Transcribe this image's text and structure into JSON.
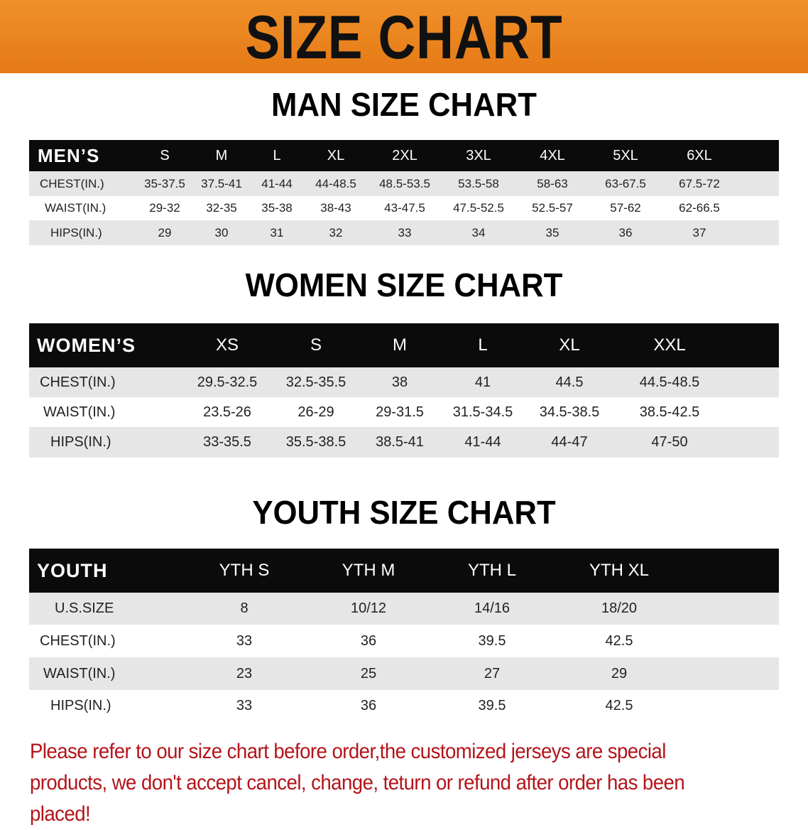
{
  "banner_title": "SIZE CHART",
  "men": {
    "title": "MAN SIZE CHART",
    "header": "MEN’S",
    "sizes": [
      "S",
      "M",
      "L",
      "XL",
      "2XL",
      "3XL",
      "4XL",
      "5XL",
      "6XL"
    ],
    "rows": [
      {
        "label": "CHEST(IN.)",
        "values": [
          "35-37.5",
          "37.5-41",
          "41-44",
          "44-48.5",
          "48.5-53.5",
          "53.5-58",
          "58-63",
          "63-67.5",
          "67.5-72"
        ]
      },
      {
        "label": "WAIST(IN.)",
        "values": [
          "29-32",
          "32-35",
          "35-38",
          "38-43",
          "43-47.5",
          "47.5-52.5",
          "52.5-57",
          "57-62",
          "62-66.5"
        ]
      },
      {
        "label": "HIPS(IN.)",
        "values": [
          "29",
          "30",
          "31",
          "32",
          "33",
          "34",
          "35",
          "36",
          "37"
        ]
      }
    ]
  },
  "women": {
    "title": "WOMEN SIZE CHART",
    "header": "WOMEN’S",
    "sizes": [
      "XS",
      "S",
      "M",
      "L",
      "XL",
      "XXL"
    ],
    "rows": [
      {
        "label": "CHEST(IN.)",
        "values": [
          "29.5-32.5",
          "32.5-35.5",
          "38",
          "41",
          "44.5",
          "44.5-48.5"
        ]
      },
      {
        "label": "WAIST(IN.)",
        "values": [
          "23.5-26",
          "26-29",
          "29-31.5",
          "31.5-34.5",
          "34.5-38.5",
          "38.5-42.5"
        ]
      },
      {
        "label": "HIPS(IN.)",
        "values": [
          "33-35.5",
          "35.5-38.5",
          "38.5-41",
          "41-44",
          "44-47",
          "47-50"
        ]
      }
    ]
  },
  "youth": {
    "title": "YOUTH SIZE CHART",
    "header": "YOUTH",
    "sizes": [
      "YTH S",
      "YTH M",
      "YTH L",
      "YTH XL"
    ],
    "rows": [
      {
        "label": "U.S.SIZE",
        "values": [
          "8",
          "10/12",
          "14/16",
          "18/20"
        ]
      },
      {
        "label": "CHEST(IN.)",
        "values": [
          "33",
          "36",
          "39.5",
          "42.5"
        ]
      },
      {
        "label": "WAIST(IN.)",
        "values": [
          "23",
          "25",
          "27",
          "29"
        ]
      },
      {
        "label": "HIPS(IN.)",
        "values": [
          "33",
          "36",
          "39.5",
          "42.5"
        ]
      }
    ]
  },
  "note": "Please refer to our size chart before order,the customized jerseys are special products, we don't accept cancel, change, teturn or refund after order has been placed!",
  "colors": {
    "banner": "#e8821e",
    "header_bg": "#0b0b0b",
    "row_gray": "#e6e6e6",
    "note": "#b3141a"
  }
}
